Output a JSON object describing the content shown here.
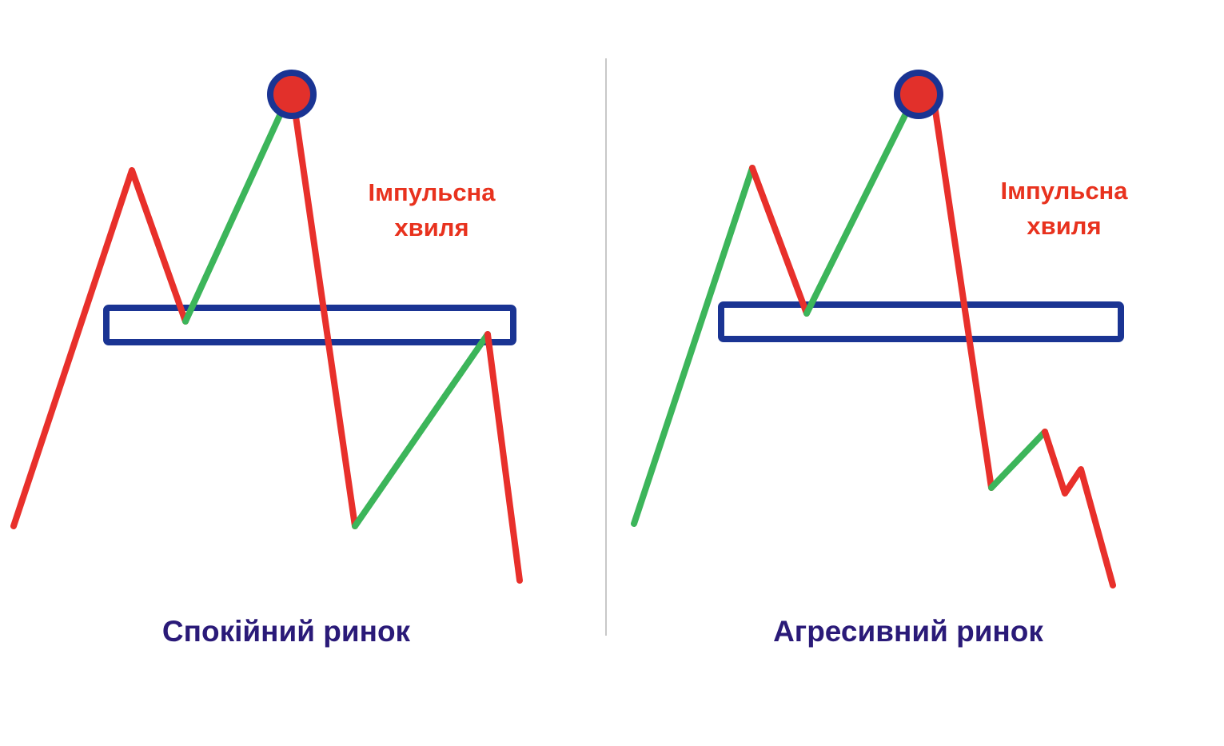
{
  "panels": [
    {
      "id": "calm",
      "caption": "Спокійний ринок",
      "annotation_line1": "Імпульсна",
      "annotation_line2": "хвиля"
    },
    {
      "id": "aggressive",
      "caption": "Агресивний ринок",
      "annotation_line1": "Імпульсна",
      "annotation_line2": "хвиля"
    }
  ],
  "colors": {
    "bearish_segment": "#e8302b",
    "bullish_segment": "#3cb55a",
    "zone_outline": "#1a3493",
    "peak_marker_fill": "#e2302b",
    "peak_marker_ring": "#1a3493",
    "annotation_text": "#e8321e",
    "caption_text": "#2a1a78",
    "divider": "#c8c8c8"
  }
}
